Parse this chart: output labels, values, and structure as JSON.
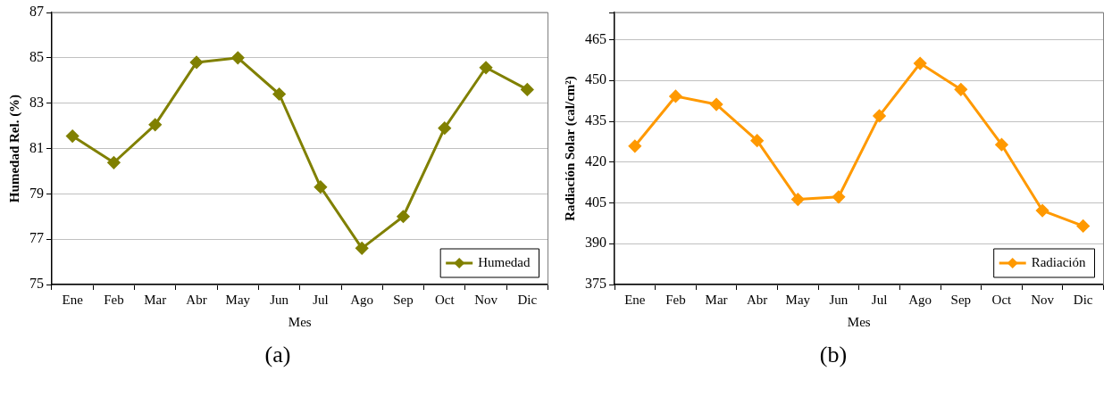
{
  "chart_data": [
    {
      "type": "line",
      "xlabel": "Mes",
      "ylabel": "Humedad Rel. (%)",
      "categories": [
        "Ene",
        "Feb",
        "Mar",
        "Abr",
        "May",
        "Jun",
        "Jul",
        "Ago",
        "Sep",
        "Oct",
        "Nov",
        "Dic"
      ],
      "series": [
        {
          "name": "Humedad",
          "color": "#808000",
          "values": [
            81.55,
            80.38,
            82.05,
            84.8,
            85.0,
            83.4,
            79.3,
            76.6,
            78.0,
            81.9,
            84.57,
            83.6
          ]
        }
      ],
      "ylim": [
        75,
        87
      ],
      "yticks": [
        75,
        77,
        79,
        81,
        83,
        85,
        87
      ],
      "grid": "y",
      "legend": "bottom right",
      "marker": "diamond",
      "line_style": "solid",
      "annotations": [
        "(a)"
      ]
    },
    {
      "type": "line",
      "xlabel": "Mes",
      "ylabel": "Radiación Solar (cal/cm²)",
      "categories": [
        "Ene",
        "Feb",
        "Mar",
        "Abr",
        "May",
        "Jun",
        "Jul",
        "Ago",
        "Sep",
        "Oct",
        "Nov",
        "Dic"
      ],
      "series": [
        {
          "name": "Radiación",
          "color": "#ff9900",
          "values": [
            425.9,
            444.2,
            441.2,
            427.9,
            406.3,
            407.2,
            437,
            456.3,
            446.7,
            426.4,
            402.2,
            396.5
          ]
        }
      ],
      "ylim": [
        375,
        475
      ],
      "yticks": [
        375,
        390,
        405,
        420,
        435,
        450,
        465,
        {
          "value": 475,
          "label": null
        }
      ],
      "grid": "y",
      "legend": "bottom right",
      "marker": "diamond",
      "line_style": "solid",
      "annotations": [
        "(b)"
      ]
    }
  ]
}
